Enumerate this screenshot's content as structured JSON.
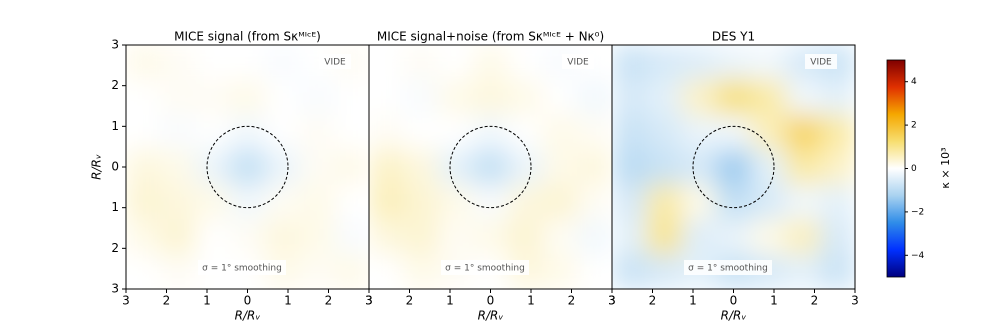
{
  "chart_data": {
    "type": "heatmap",
    "xlabel": "R/Rᵥ",
    "ylabel": "R/Rᵥ",
    "xlim": [
      -3,
      3
    ],
    "ylim": [
      -3,
      3
    ],
    "xticks": [
      {
        "value": -3,
        "label": "3"
      },
      {
        "value": -2,
        "label": "2"
      },
      {
        "value": -1,
        "label": "1"
      },
      0,
      1,
      2,
      3
    ],
    "yticks": [
      {
        "value": -3,
        "label": "3"
      },
      {
        "value": -2,
        "label": "2"
      },
      {
        "value": -1,
        "label": "1"
      },
      0,
      1,
      2,
      3
    ],
    "circle_radius": 1,
    "panels": [
      {
        "title": "MICE signal (from Sκᴹᴵᶜᴱ)",
        "label": "VIDE",
        "annotation": "σ = 1° smoothing",
        "values": [
          [
            0.2,
            0.1,
            0,
            0,
            -0.1,
            0,
            0.1
          ],
          [
            0,
            0.1,
            0.1,
            0.2,
            0,
            -0.1,
            0
          ],
          [
            0,
            -0.1,
            0,
            -0.2,
            0,
            0.1,
            0
          ],
          [
            0.3,
            0.2,
            -0.3,
            -0.9,
            -0.3,
            0.1,
            0.2
          ],
          [
            0.4,
            0.3,
            0.2,
            -0.2,
            0.1,
            0.2,
            0
          ],
          [
            0.2,
            0.4,
            0,
            0.1,
            0.3,
            0.2,
            -0.1
          ],
          [
            0,
            0.1,
            0,
            0,
            0.2,
            0.1,
            0.2
          ]
        ]
      },
      {
        "title": "MICE signal+noise (from Sκᴹᴵᶜᴱ + Nκ⁰)",
        "label": "VIDE",
        "annotation": "σ = 1° smoothing",
        "values": [
          [
            0,
            0.1,
            0,
            0.2,
            0,
            -0.1,
            0
          ],
          [
            0,
            -0.1,
            0.2,
            0.3,
            0.2,
            0,
            -0.2
          ],
          [
            0.1,
            0,
            0,
            -0.2,
            0,
            0.2,
            0.1
          ],
          [
            0.5,
            0.3,
            -0.4,
            -0.9,
            -0.3,
            0.2,
            0.3
          ],
          [
            0.6,
            0.4,
            0.2,
            -0.1,
            0.3,
            0.4,
            0.1
          ],
          [
            0.3,
            0.4,
            0.1,
            0.2,
            0.4,
            0.1,
            -0.2
          ],
          [
            0,
            0.2,
            0.1,
            0,
            0.3,
            0.2,
            0
          ]
        ]
      },
      {
        "title": "DES Y1",
        "label": "VIDE",
        "annotation": "σ = 1° smoothing",
        "values": [
          [
            -0.8,
            -0.6,
            -0.5,
            -0.3,
            -0.2,
            -0.6,
            -0.8
          ],
          [
            -0.6,
            -0.4,
            0.5,
            1.2,
            0.8,
            -0.2,
            -0.4
          ],
          [
            -0.8,
            -0.6,
            -0.3,
            -0.2,
            0.6,
            1.5,
            0.8
          ],
          [
            -1,
            -0.8,
            -0.6,
            -1.4,
            -0.4,
            0.8,
            0.5
          ],
          [
            -0.6,
            0.8,
            0.2,
            -0.9,
            -0.6,
            -0.2,
            -0.4
          ],
          [
            -0.4,
            1,
            -0.5,
            -0.3,
            0.2,
            0.6,
            -0.6
          ],
          [
            -0.8,
            -0.6,
            -0.4,
            -0.8,
            -0.6,
            -0.4,
            -0.8
          ]
        ]
      }
    ],
    "colorbar": {
      "label": "κ × 10³",
      "lim": [
        -5,
        5
      ],
      "ticks": [
        {
          "value": -4,
          "label": "−4"
        },
        {
          "value": -2,
          "label": "−2"
        },
        0,
        2,
        4
      ],
      "colors": [
        "#00007f",
        "#0030ff",
        "#2f8ce8",
        "#a9d2f0",
        "#ffffff",
        "#f7de70",
        "#f5a700",
        "#e03000",
        "#7f0000"
      ]
    }
  }
}
